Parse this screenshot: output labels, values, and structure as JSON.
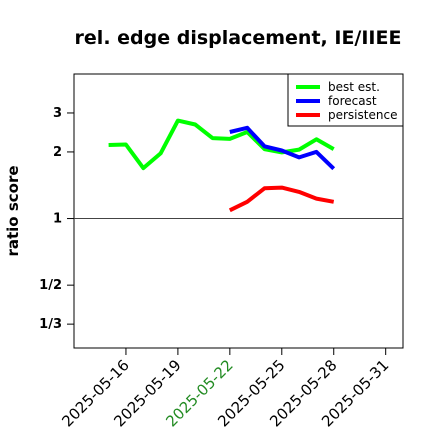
{
  "chart_data": {
    "type": "line",
    "title": "rel. edge displacement, IE/IIEE",
    "xlabel": "",
    "ylabel": "ratio score",
    "y_scale": "log",
    "ylim": [
      0.26,
      4.5
    ],
    "y_ticks": [
      {
        "value": 3,
        "label": "3"
      },
      {
        "value": 2,
        "label": "2"
      },
      {
        "value": 1,
        "label": "1"
      },
      {
        "value": 0.5,
        "label": "1/2"
      },
      {
        "value": 0.3333,
        "label": "1/3"
      }
    ],
    "reference_line": 1,
    "xlim": [
      "2025-05-13",
      "2025-06-01"
    ],
    "x_ticks": [
      {
        "value": "2025-05-16",
        "label": "2025-05-16",
        "color": "#000000"
      },
      {
        "value": "2025-05-19",
        "label": "2025-05-19",
        "color": "#000000"
      },
      {
        "value": "2025-05-22",
        "label": "2025-05-22",
        "color": "#228B22"
      },
      {
        "value": "2025-05-25",
        "label": "2025-05-25",
        "color": "#000000"
      },
      {
        "value": "2025-05-28",
        "label": "2025-05-28",
        "color": "#000000"
      },
      {
        "value": "2025-05-31",
        "label": "2025-05-31",
        "color": "#000000"
      }
    ],
    "legend_position": "top-right",
    "series": [
      {
        "name": "best est.",
        "color": "#00FF00",
        "points": [
          {
            "x": "2025-05-15",
            "y": 2.15
          },
          {
            "x": "2025-05-16",
            "y": 2.16
          },
          {
            "x": "2025-05-17",
            "y": 1.69
          },
          {
            "x": "2025-05-18",
            "y": 1.97
          },
          {
            "x": "2025-05-19",
            "y": 2.77
          },
          {
            "x": "2025-05-20",
            "y": 2.66
          },
          {
            "x": "2025-05-21",
            "y": 2.31
          },
          {
            "x": "2025-05-22",
            "y": 2.29
          },
          {
            "x": "2025-05-23",
            "y": 2.46
          },
          {
            "x": "2025-05-24",
            "y": 2.06
          },
          {
            "x": "2025-05-25",
            "y": 1.99
          },
          {
            "x": "2025-05-26",
            "y": 2.05
          },
          {
            "x": "2025-05-27",
            "y": 2.28
          },
          {
            "x": "2025-05-28",
            "y": 2.06
          }
        ]
      },
      {
        "name": "forecast",
        "color": "#0000FF",
        "points": [
          {
            "x": "2025-05-22",
            "y": 2.46
          },
          {
            "x": "2025-05-23",
            "y": 2.57
          },
          {
            "x": "2025-05-24",
            "y": 2.12
          },
          {
            "x": "2025-05-25",
            "y": 2.03
          },
          {
            "x": "2025-05-26",
            "y": 1.89
          },
          {
            "x": "2025-05-27",
            "y": 2.0
          },
          {
            "x": "2025-05-28",
            "y": 1.68
          }
        ]
      },
      {
        "name": "persistence",
        "color": "#FF0000",
        "points": [
          {
            "x": "2025-05-22",
            "y": 1.09
          },
          {
            "x": "2025-05-23",
            "y": 1.19
          },
          {
            "x": "2025-05-24",
            "y": 1.37
          },
          {
            "x": "2025-05-25",
            "y": 1.38
          },
          {
            "x": "2025-05-26",
            "y": 1.32
          },
          {
            "x": "2025-05-27",
            "y": 1.23
          },
          {
            "x": "2025-05-28",
            "y": 1.19
          }
        ]
      }
    ]
  }
}
